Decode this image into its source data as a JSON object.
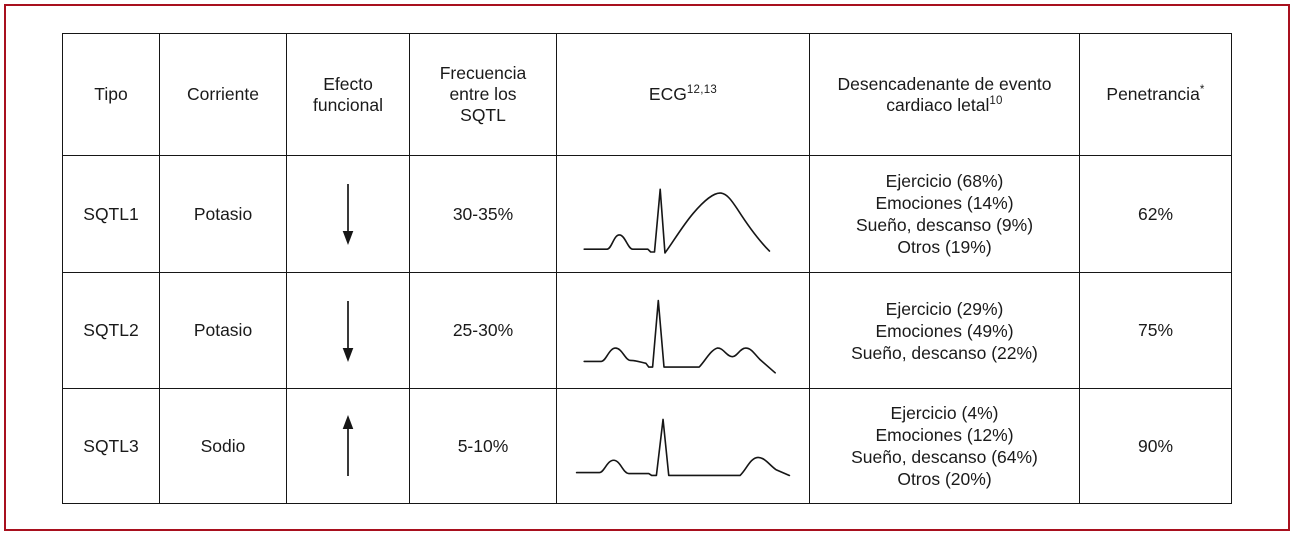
{
  "frame": {
    "border_color": "#a8101e"
  },
  "table": {
    "columns": [
      {
        "label": "Tipo",
        "sup": "",
        "col_class": "col-tipo"
      },
      {
        "label": "Corriente",
        "sup": "",
        "col_class": "col-corriente"
      },
      {
        "label": "Efecto funcional",
        "sup": "",
        "col_class": "col-efecto"
      },
      {
        "label": "Frecuencia entre los SQTL",
        "sup": "",
        "col_class": "col-frecuencia"
      },
      {
        "label": "ECG",
        "sup": "12,13",
        "col_class": "col-ecg"
      },
      {
        "label": "Desencadenante de evento cardiaco letal",
        "sup": "10",
        "col_class": "col-trigger"
      },
      {
        "label": "Penetrancia",
        "sup": "*",
        "col_class": "col-penetrancia"
      }
    ],
    "rows": [
      {
        "tipo": "SQTL1",
        "corriente": "Potasio",
        "efecto_icon": "arrow-down-icon",
        "frecuencia": "30-35%",
        "ecg_icon": "ecg-sqtl1-broad-t-wave-icon",
        "desencadenantes": [
          "Ejercicio (68%)",
          "Emociones (14%)",
          "Sueño, descanso (9%)",
          "Otros (19%)"
        ],
        "penetrancia": "62%"
      },
      {
        "tipo": "SQTL2",
        "corriente": "Potasio",
        "efecto_icon": "arrow-down-icon",
        "frecuencia": "25-30%",
        "ecg_icon": "ecg-sqtl2-bifid-t-wave-icon",
        "desencadenantes": [
          "Ejercicio (29%)",
          "Emociones (49%)",
          "Sueño, descanso (22%)"
        ],
        "penetrancia": "75%"
      },
      {
        "tipo": "SQTL3",
        "corriente": "Sodio",
        "efecto_icon": "arrow-up-icon",
        "frecuencia": "5-10%",
        "ecg_icon": "ecg-sqtl3-late-t-wave-icon",
        "desencadenantes": [
          "Ejercicio (4%)",
          "Emociones (12%)",
          "Sueño, descanso (64%)",
          "Otros (20%)"
        ],
        "penetrancia": "90%"
      }
    ]
  }
}
